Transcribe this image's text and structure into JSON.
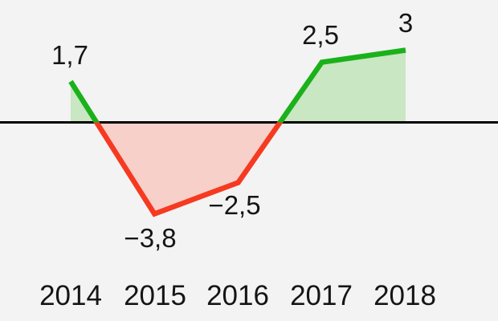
{
  "chart_data": {
    "type": "line",
    "title": "",
    "xlabel": "",
    "ylabel": "",
    "categories": [
      "2014",
      "2015",
      "2016",
      "2017",
      "2018"
    ],
    "values": [
      1.7,
      -3.8,
      -2.5,
      2.5,
      3
    ],
    "point_labels": [
      "1,7",
      "−3,8",
      "−2,5",
      "2,5",
      "3"
    ],
    "baseline": 0,
    "ylim": [
      -4.5,
      5.1
    ],
    "grid": false,
    "legend": false,
    "number_format": "decimal-comma",
    "colors": {
      "positive_line": "#1bb11b",
      "negative_line": "#f53a21",
      "positive_fill": "#c9e7c2",
      "negative_fill": "#f6d0c9",
      "zero_line": "#000000",
      "background": "#f3f3f3",
      "text": "#151515"
    }
  }
}
